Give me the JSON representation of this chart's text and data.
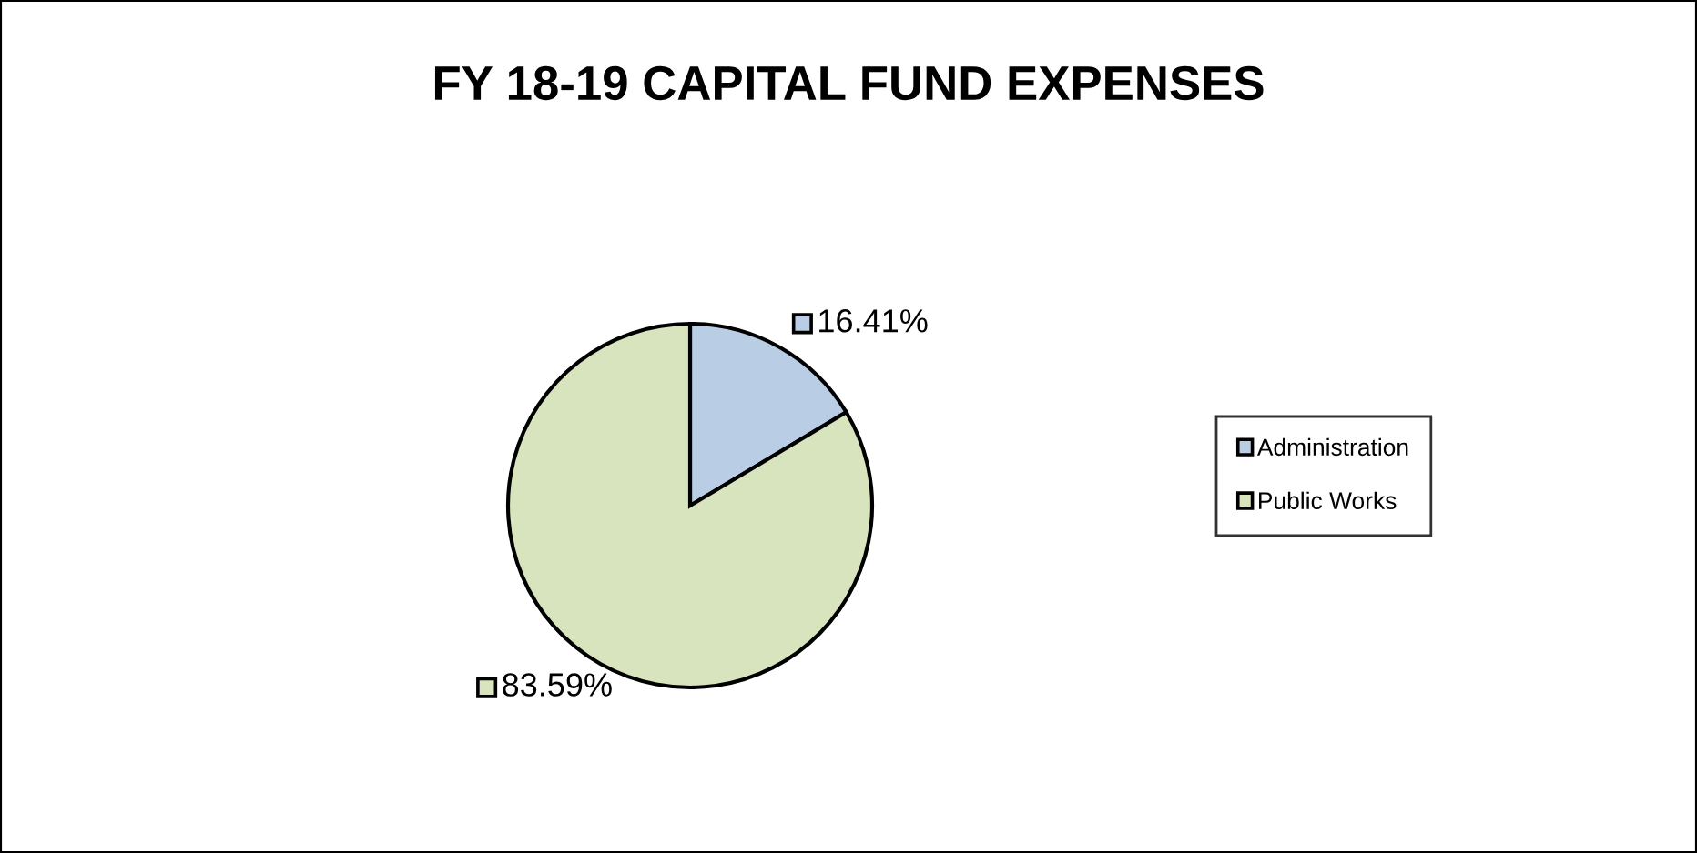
{
  "chart_data": {
    "type": "pie",
    "title": "FY 18-19 CAPITAL FUND EXPENSES",
    "categories": [
      "Administration",
      "Public Works"
    ],
    "values": [
      16.41,
      83.59
    ],
    "colors": [
      "#b9cde5",
      "#d7e4bd"
    ],
    "value_labels": [
      "16.41%",
      "83.59%"
    ],
    "legend": "right"
  }
}
